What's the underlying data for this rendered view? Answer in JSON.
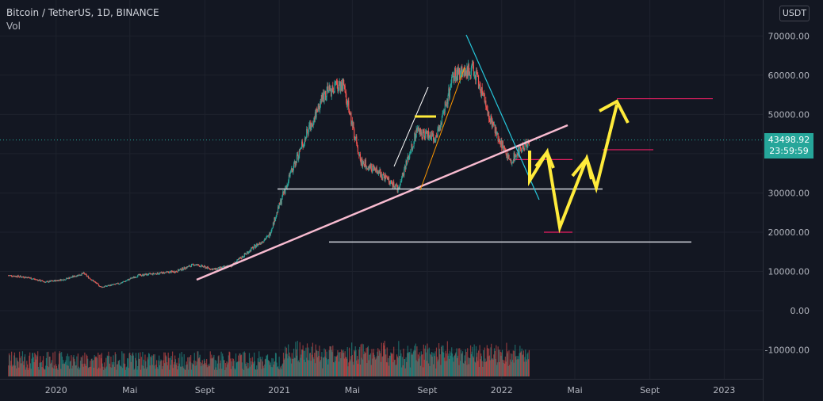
{
  "header": {
    "symbol": "Bitcoin / TetherUS, 1D, BINANCE",
    "indicator": "Vol"
  },
  "currency_label": "USDT",
  "current_price": {
    "value": "43498.92",
    "countdown": "23:59:59",
    "color": "#26a69a"
  },
  "colors": {
    "background": "#131722",
    "up": "#26a69a",
    "down": "#ef5350",
    "grid": "#1e222d",
    "trendline": "#f8bbd0",
    "support": "#d1d4dc",
    "projection": "#ffeb3b",
    "target": "#e91e63",
    "channel_cyan": "#26c6da"
  },
  "chart_data": {
    "type": "line",
    "title": "Bitcoin / TetherUS, 1D, BINANCE",
    "xlabel": "",
    "ylabel": "",
    "y_axis_ticks": [
      "70000.00",
      "60000.00",
      "50000.00",
      "40000.00",
      "30000.00",
      "20000.00",
      "10000.00",
      "0.00",
      "-10000.00"
    ],
    "x_axis_ticks": [
      "2020",
      "Mai",
      "Sept",
      "2021",
      "Mai",
      "Sept",
      "2022",
      "Mai",
      "Sept",
      "2023"
    ],
    "ylim": [
      -14000,
      75000
    ],
    "grid": true,
    "series": [
      {
        "x": [
          "2019-10",
          "2019-11",
          "2019-12",
          "2020-01",
          "2020-02",
          "2020-03",
          "2020-04",
          "2020-05",
          "2020-06",
          "2020-07",
          "2020-08",
          "2020-09",
          "2020-10",
          "2020-11",
          "2020-12",
          "2021-01",
          "2021-02",
          "2021-03",
          "2021-04",
          "2021-05",
          "2021-06",
          "2021-07",
          "2021-08",
          "2021-09",
          "2021-10",
          "2021-11",
          "2021-12",
          "2022-01",
          "2022-02"
        ],
        "values": [
          9000,
          8500,
          7300,
          8000,
          9500,
          6000,
          7000,
          9000,
          9500,
          10000,
          11800,
          10500,
          11500,
          15500,
          19000,
          33000,
          45000,
          55000,
          58000,
          38000,
          35000,
          31000,
          46000,
          44000,
          60000,
          62000,
          48000,
          38000,
          43500
        ]
      }
    ],
    "annotations": {
      "support_levels": [
        31000,
        17500
      ],
      "target_levels": [
        54000,
        41000,
        38500,
        20000
      ]
    }
  }
}
